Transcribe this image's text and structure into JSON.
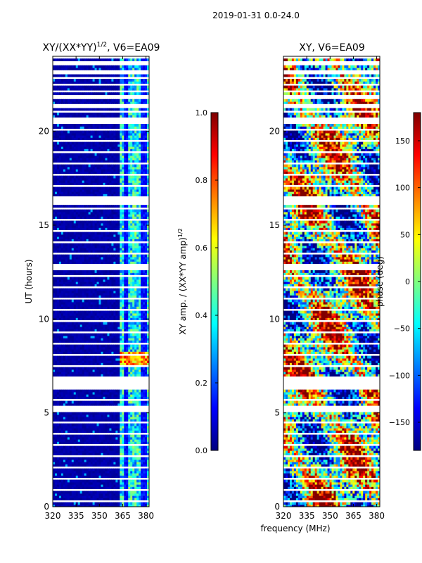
{
  "suptitle": "2019-01-31 0.0-24.0",
  "xlabel": "frequency (MHz)",
  "chart_data": [
    {
      "type": "heatmap",
      "title_main": "XY/(XX*YY)",
      "title_exp": "1/2",
      "title_suffix": ", V6=EA09",
      "ylabel": "UT (hours)",
      "xlim": [
        320,
        382
      ],
      "ylim": [
        0,
        24
      ],
      "xticks": [
        "320",
        "335",
        "350",
        "365",
        "380"
      ],
      "yticks": [
        "0",
        "5",
        "10",
        "15",
        "20"
      ],
      "colormap": "jet",
      "colorbar": {
        "label_main": "XY amp. / (XX*YY amp)",
        "label_exp": "1/2",
        "range": [
          0.0,
          1.0
        ],
        "ticks": [
          "0.0",
          "0.2",
          "0.4",
          "0.6",
          "0.8",
          "1.0"
        ]
      },
      "notes": "Amplitude mostly near 0 (dark blue) below ~363 MHz; columns of 0.3-0.6 values between 363-382 MHz; elevated values ~0.8 near 7.5-8.2 h; blank (no data) gaps between ~6.2-7 h and in many thin rows."
    },
    {
      "type": "heatmap",
      "title_main": "XY",
      "title_suffix": ", V6=EA09",
      "xlim": [
        320,
        382
      ],
      "ylim": [
        0,
        24
      ],
      "xticks": [
        "320",
        "335",
        "350",
        "365",
        "380"
      ],
      "yticks": [
        "0",
        "5",
        "10",
        "15",
        "20"
      ],
      "colormap": "jet",
      "colorbar": {
        "label": "phase (deg)",
        "range": [
          -180,
          180
        ],
        "ticks": [
          "150",
          "100",
          "50",
          "0",
          "−50",
          "−100",
          "−150"
        ]
      },
      "notes": "Phase values spread over full -180 to 180 range with noisy structure; same blank gaps as amplitude panel."
    }
  ]
}
